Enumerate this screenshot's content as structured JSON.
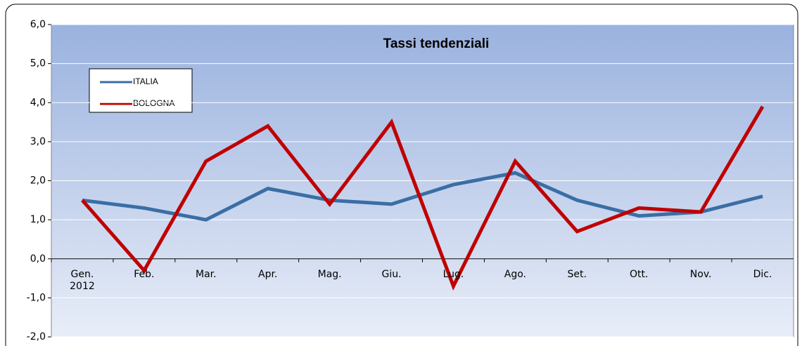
{
  "chart_data": {
    "type": "line",
    "title": "Tassi tendenziali",
    "categories": [
      "Gen.\n2012",
      "Feb.",
      "Mar.",
      "Apr.",
      "Mag.",
      "Giu.",
      "Lug.",
      "Ago.",
      "Set.",
      "Ott.",
      "Nov.",
      "Dic."
    ],
    "series": [
      {
        "name": "ITALIA",
        "color": "#3a6ea5",
        "values": [
          1.5,
          1.3,
          1.0,
          1.8,
          1.5,
          1.4,
          1.9,
          2.2,
          1.5,
          1.1,
          1.2,
          1.6
        ]
      },
      {
        "name": "BOLOGNA",
        "color": "#c00000",
        "values": [
          1.5,
          -0.3,
          2.5,
          3.4,
          1.4,
          3.5,
          -0.7,
          2.5,
          0.7,
          1.3,
          1.2,
          3.9
        ]
      }
    ],
    "ylim": [
      -2,
      6
    ],
    "yticks": [
      {
        "value": -2,
        "label": "-2,0"
      },
      {
        "value": -1,
        "label": "-1,0"
      },
      {
        "value": 0,
        "label": "0,0"
      },
      {
        "value": 1,
        "label": "1,0"
      },
      {
        "value": 2,
        "label": "2,0"
      },
      {
        "value": 3,
        "label": "3,0"
      },
      {
        "value": 4,
        "label": "4,0"
      },
      {
        "value": 5,
        "label": "5,0"
      },
      {
        "value": 6,
        "label": "6,0"
      }
    ],
    "grid": true
  }
}
